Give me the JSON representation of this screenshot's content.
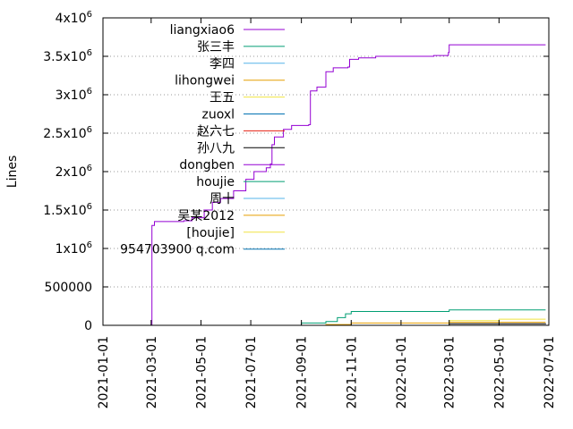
{
  "chart_data": {
    "type": "line",
    "title": "",
    "xlabel": "",
    "ylabel": "Lines",
    "x_type": "date",
    "xlim": [
      "2021-01-01",
      "2022-07-01"
    ],
    "ylim": [
      0,
      4000000
    ],
    "grid": "horizontal dotted",
    "legend_position": "top-left inside",
    "x_ticks": [
      "2021-01-01",
      "2021-03-01",
      "2021-05-01",
      "2021-07-01",
      "2021-09-01",
      "2021-11-01",
      "2022-01-01",
      "2022-03-01",
      "2022-05-01",
      "2022-07-01"
    ],
    "y_ticks": [
      {
        "value": 0,
        "base": "0",
        "exp": ""
      },
      {
        "value": 500000,
        "base": "500000",
        "exp": ""
      },
      {
        "value": 1000000,
        "base": "1x10",
        "exp": "6"
      },
      {
        "value": 1500000,
        "base": "1.5x10",
        "exp": "6"
      },
      {
        "value": 2000000,
        "base": "2x10",
        "exp": "6"
      },
      {
        "value": 2500000,
        "base": "2.5x10",
        "exp": "6"
      },
      {
        "value": 3000000,
        "base": "3x10",
        "exp": "6"
      },
      {
        "value": 3500000,
        "base": "3.5x10",
        "exp": "6"
      },
      {
        "value": 4000000,
        "base": "4x10",
        "exp": "6"
      }
    ],
    "series": [
      {
        "name": "liangxiao6",
        "color": "#9400d3",
        "points": [
          [
            "2021-03-01",
            0
          ],
          [
            "2021-03-02",
            1300000
          ],
          [
            "2021-03-05",
            1350000
          ],
          [
            "2021-04-10",
            1360000
          ],
          [
            "2021-04-20",
            1400000
          ],
          [
            "2021-05-05",
            1500000
          ],
          [
            "2021-05-15",
            1600000
          ],
          [
            "2021-05-25",
            1650000
          ],
          [
            "2021-06-10",
            1750000
          ],
          [
            "2021-06-25",
            1900000
          ],
          [
            "2021-07-05",
            2000000
          ],
          [
            "2021-07-20",
            2050000
          ],
          [
            "2021-07-25",
            2100000
          ],
          [
            "2021-07-27",
            2350000
          ],
          [
            "2021-07-30",
            2450000
          ],
          [
            "2021-08-10",
            2550000
          ],
          [
            "2021-08-20",
            2600000
          ],
          [
            "2021-09-10",
            2610000
          ],
          [
            "2021-09-12",
            3050000
          ],
          [
            "2021-09-20",
            3100000
          ],
          [
            "2021-10-01",
            3300000
          ],
          [
            "2021-10-10",
            3350000
          ],
          [
            "2021-10-28",
            3360000
          ],
          [
            "2021-10-30",
            3460000
          ],
          [
            "2021-11-10",
            3480000
          ],
          [
            "2021-12-01",
            3500000
          ],
          [
            "2022-02-10",
            3510000
          ],
          [
            "2022-02-28",
            3550000
          ],
          [
            "2022-03-01",
            3650000
          ],
          [
            "2022-06-27",
            3650000
          ]
        ]
      },
      {
        "name": "张三丰",
        "color": "#009e73",
        "points": [
          [
            "2021-08-05",
            0
          ],
          [
            "2021-09-01",
            30000
          ],
          [
            "2021-10-01",
            50000
          ],
          [
            "2021-10-15",
            100000
          ],
          [
            "2021-10-25",
            150000
          ],
          [
            "2021-11-01",
            180000
          ],
          [
            "2021-12-01",
            180000
          ],
          [
            "2022-03-01",
            200000
          ],
          [
            "2022-06-27",
            200000
          ]
        ]
      },
      {
        "name": "李四",
        "color": "#56b4e9",
        "points": [
          [
            "2021-08-05",
            0
          ],
          [
            "2022-06-27",
            2000
          ]
        ]
      },
      {
        "name": "lihongwei",
        "color": "#e69f00",
        "points": [
          [
            "2021-08-05",
            0
          ],
          [
            "2021-10-01",
            10000
          ],
          [
            "2021-11-01",
            30000
          ],
          [
            "2022-03-01",
            40000
          ],
          [
            "2022-06-27",
            40000
          ]
        ]
      },
      {
        "name": "王五",
        "color": "#f0e442",
        "points": [
          [
            "2021-08-05",
            0
          ],
          [
            "2022-03-01",
            60000
          ],
          [
            "2022-05-01",
            80000
          ],
          [
            "2022-06-27",
            80000
          ]
        ]
      },
      {
        "name": "zuoxl",
        "color": "#0072b2",
        "points": [
          [
            "2021-08-05",
            0
          ],
          [
            "2022-06-27",
            5000
          ]
        ]
      },
      {
        "name": "赵六七",
        "color": "#e51e10",
        "points": [
          [
            "2021-08-05",
            0
          ],
          [
            "2022-06-27",
            3000
          ]
        ]
      },
      {
        "name": "孙八九",
        "color": "#000000",
        "points": [
          [
            "2021-08-05",
            0
          ],
          [
            "2022-03-01",
            20000
          ],
          [
            "2022-06-27",
            25000
          ]
        ]
      },
      {
        "name": "dongben",
        "color": "#9400d3",
        "points": [
          [
            "2021-08-05",
            0
          ],
          [
            "2022-06-27",
            2000
          ]
        ]
      },
      {
        "name": "houjie",
        "color": "#009e73",
        "points": [
          [
            "2021-08-05",
            0
          ],
          [
            "2022-06-27",
            3000
          ]
        ]
      },
      {
        "name": "周十",
        "color": "#56b4e9",
        "points": [
          [
            "2021-08-05",
            0
          ],
          [
            "2022-06-27",
            2000
          ]
        ]
      },
      {
        "name": "吴某2012",
        "color": "#e69f00",
        "points": [
          [
            "2021-08-05",
            0
          ],
          [
            "2022-06-27",
            4000
          ]
        ]
      },
      {
        "name": "[houjie]",
        "color": "#f0e442",
        "points": [
          [
            "2021-08-05",
            0
          ],
          [
            "2022-06-27",
            2000
          ]
        ]
      },
      {
        "name": "954703900 q.com",
        "color": "#0072b2",
        "points": [
          [
            "2021-08-05",
            0
          ],
          [
            "2022-06-27",
            3000
          ]
        ]
      }
    ]
  }
}
